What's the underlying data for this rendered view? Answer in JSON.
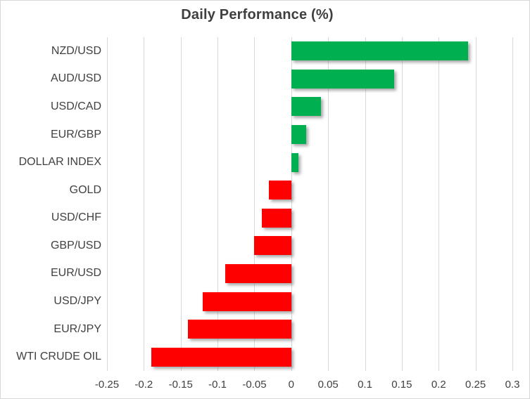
{
  "title": "Daily Performance (%)",
  "colors": {
    "positive": "#00B050",
    "negative": "#FF0000",
    "gridline": "#D9D9D9",
    "text": "#404040",
    "border": "#D7D7D7",
    "background": "#FFFFFF"
  },
  "chart_data": {
    "type": "bar",
    "orientation": "horizontal",
    "title": "Daily Performance (%)",
    "categories": [
      "NZD/USD",
      "AUD/USD",
      "USD/CAD",
      "EUR/GBP",
      "DOLLAR INDEX",
      "GOLD",
      "USD/CHF",
      "GBP/USD",
      "EUR/USD",
      "USD/JPY",
      "EUR/JPY",
      "WTI CRUDE OIL"
    ],
    "values": [
      0.24,
      0.14,
      0.04,
      0.02,
      0.01,
      -0.03,
      -0.04,
      -0.05,
      -0.09,
      -0.12,
      -0.14,
      -0.19
    ],
    "xlabel": "",
    "ylabel": "",
    "xlim": [
      -0.25,
      0.3
    ],
    "x_ticks": [
      -0.25,
      -0.2,
      -0.15,
      -0.1,
      -0.05,
      0,
      0.05,
      0.1,
      0.15,
      0.2,
      0.25,
      0.3
    ],
    "x_tick_labels": [
      "-0.25",
      "-0.2",
      "-0.15",
      "-0.1",
      "-0.05",
      "0",
      "0.05",
      "0.1",
      "0.15",
      "0.2",
      "0.25",
      "0.3"
    ],
    "grid": "vertical",
    "legend": "none",
    "positive_color": "#00B050",
    "negative_color": "#FF0000"
  }
}
